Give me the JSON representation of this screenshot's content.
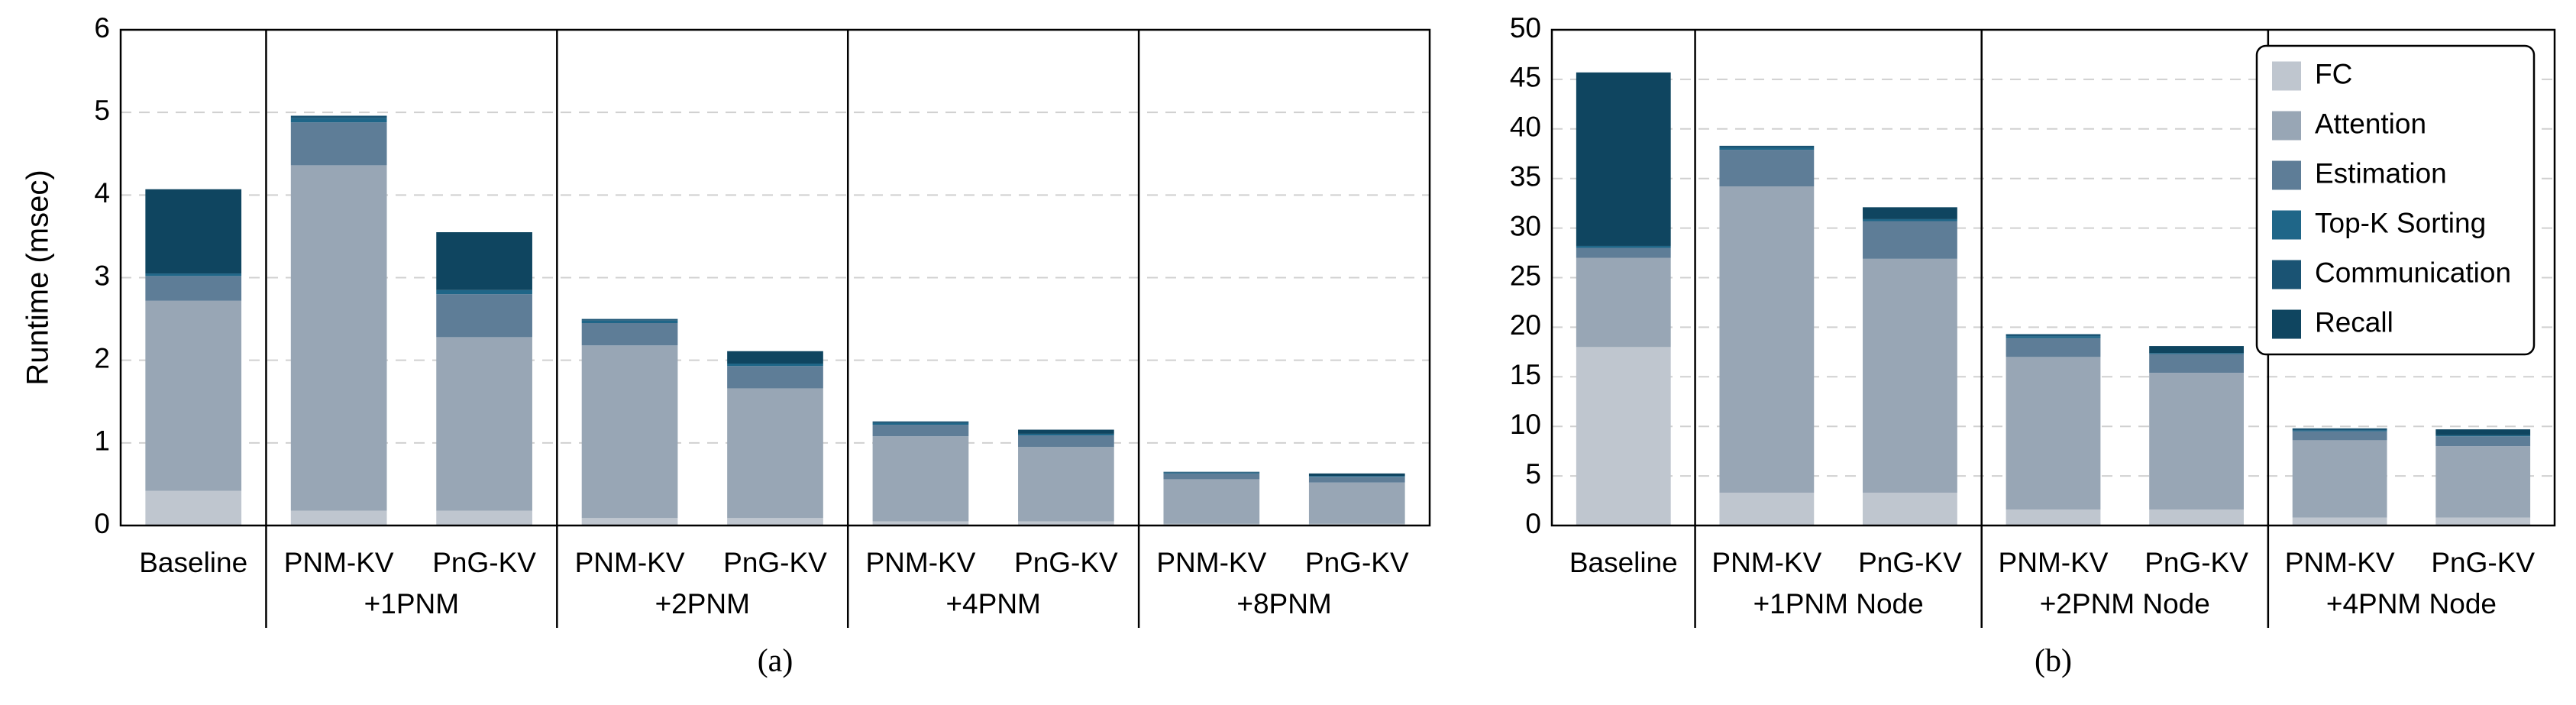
{
  "chart_data": [
    {
      "type": "stacked-bar",
      "ylabel": "Runtime (msec)",
      "caption": "(a)",
      "category_groups": [
        {
          "label": null,
          "categories": [
            "Baseline"
          ]
        },
        {
          "label": "+1PNM",
          "categories": [
            "PNM-KV",
            "PnG-KV"
          ]
        },
        {
          "label": "+2PNM",
          "categories": [
            "PNM-KV",
            "PnG-KV"
          ]
        },
        {
          "label": "+4PNM",
          "categories": [
            "PNM-KV",
            "PnG-KV"
          ]
        },
        {
          "label": "+8PNM",
          "categories": [
            "PNM-KV",
            "PnG-KV"
          ]
        }
      ],
      "series": [
        {
          "name": "FC",
          "color": "#bfc6cf",
          "values": [
            0.42,
            0.18,
            0.18,
            0.09,
            0.09,
            0.05,
            0.05,
            0.02,
            0.02
          ]
        },
        {
          "name": "Attention",
          "color": "#98a6b5",
          "values": [
            2.3,
            4.18,
            2.1,
            2.09,
            1.57,
            1.03,
            0.9,
            0.54,
            0.5
          ]
        },
        {
          "name": "Estimation",
          "color": "#5e7d97",
          "values": [
            0.3,
            0.52,
            0.52,
            0.27,
            0.27,
            0.14,
            0.14,
            0.07,
            0.07
          ]
        },
        {
          "name": "Top-K Sorting",
          "color": "#1f6688",
          "values": [
            0.03,
            0.05,
            0.05,
            0.03,
            0.03,
            0.02,
            0.02,
            0.01,
            0.01
          ]
        },
        {
          "name": "Communication",
          "color": "#1a5373",
          "values": [
            0,
            0.03,
            0,
            0.02,
            0,
            0.02,
            0,
            0.01,
            0
          ]
        },
        {
          "name": "Recall",
          "color": "#0f4560",
          "values": [
            1.02,
            0,
            0.7,
            0,
            0.15,
            0,
            0.05,
            0,
            0.03
          ]
        }
      ],
      "ylim": [
        0,
        6
      ],
      "yticks": [
        0,
        1,
        2,
        3,
        4,
        5,
        6
      ],
      "grid": true,
      "legend": null
    },
    {
      "type": "stacked-bar",
      "caption": "(b)",
      "category_groups": [
        {
          "label": null,
          "categories": [
            "Baseline"
          ]
        },
        {
          "label": "+1PNM Node",
          "categories": [
            "PNM-KV",
            "PnG-KV"
          ]
        },
        {
          "label": "+2PNM Node",
          "categories": [
            "PNM-KV",
            "PnG-KV"
          ]
        },
        {
          "label": "+4PNM Node",
          "categories": [
            "PNM-KV",
            "PnG-KV"
          ]
        }
      ],
      "series": [
        {
          "name": "FC",
          "color": "#bfc6cf",
          "values": [
            18,
            3.3,
            3.3,
            1.6,
            1.6,
            0.8,
            0.8
          ]
        },
        {
          "name": "Attention",
          "color": "#98a6b5",
          "values": [
            9,
            30.9,
            23.6,
            15.4,
            13.8,
            7.8,
            7.2
          ]
        },
        {
          "name": "Estimation",
          "color": "#5e7d97",
          "values": [
            1,
            3.7,
            3.8,
            1.9,
            1.9,
            0.9,
            1
          ]
        },
        {
          "name": "Top-K Sorting",
          "color": "#1f6688",
          "values": [
            0.2,
            0.2,
            0.2,
            0.2,
            0.1,
            0.1,
            0.1
          ]
        },
        {
          "name": "Communication",
          "color": "#1a5373",
          "values": [
            0,
            0.2,
            0,
            0.2,
            0,
            0.2,
            0
          ]
        },
        {
          "name": "Recall",
          "color": "#0f4560",
          "values": [
            17.5,
            0,
            1.2,
            0,
            0.7,
            0,
            0.6
          ]
        }
      ],
      "ylim": [
        0,
        50
      ],
      "yticks": [
        0,
        5,
        10,
        15,
        20,
        25,
        30,
        35,
        40,
        45,
        50
      ],
      "grid": true,
      "legend": "upper right"
    }
  ]
}
